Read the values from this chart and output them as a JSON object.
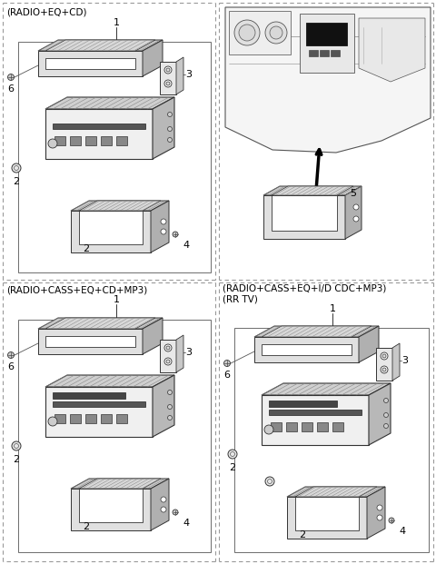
{
  "bg": "#ffffff",
  "line": "#000000",
  "gray_light": "#e8e8e8",
  "gray_mid": "#cccccc",
  "gray_dark": "#aaaaaa",
  "hatch_color": "#888888",
  "dash_color": "#888888",
  "panels": {
    "tl": [
      3,
      3,
      237,
      308
    ],
    "tr": [
      241,
      3,
      477,
      308
    ],
    "bl": [
      3,
      311,
      237,
      618
    ],
    "br": [
      241,
      311,
      477,
      618
    ]
  },
  "tl_label": "(RADIO+EQ+CD)",
  "bl_label": "(RADIO+CASS+EQ+CD+MP3)",
  "br_label1": "(RADIO+CASS+EQ+I/D CDC+MP3)",
  "br_label2": "(RR TV)"
}
